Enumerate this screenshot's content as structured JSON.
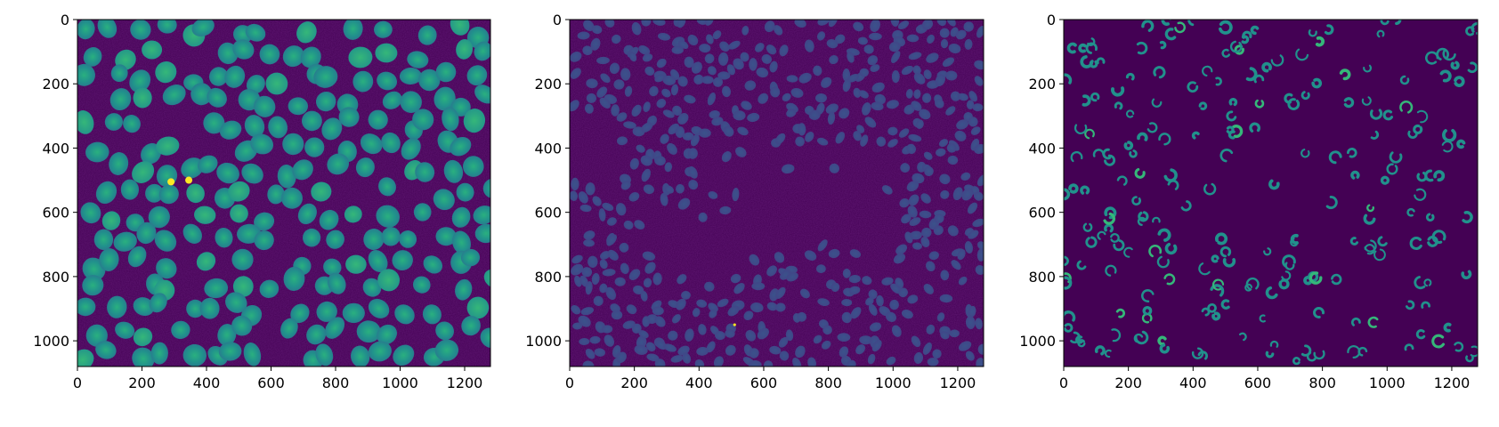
{
  "figure": {
    "background": "#ffffff",
    "image_background": "#440154",
    "colormap": "viridis",
    "panels": [
      {
        "id": "panel-1",
        "content": "dense fluorescent nuclei, large and bright teal/green with textured interiors",
        "x_ticks": [
          "0",
          "200",
          "400",
          "600",
          "800",
          "1000",
          "1200"
        ],
        "y_ticks": [
          "0",
          "200",
          "400",
          "600",
          "800",
          "1000"
        ],
        "x_range": [
          0,
          1280
        ],
        "y_range": [
          0,
          1080
        ]
      },
      {
        "id": "panel-2",
        "content": "many small dim blue-purple nuclei with an empty central region",
        "x_ticks": [
          "0",
          "200",
          "400",
          "600",
          "800",
          "1000",
          "1200"
        ],
        "y_ticks": [
          "0",
          "200",
          "400",
          "600",
          "800",
          "1000"
        ],
        "x_range": [
          0,
          1280
        ],
        "y_range": [
          0,
          1080
        ]
      },
      {
        "id": "panel-3",
        "content": "sparse segmented teal nuclei fragments on dark purple background",
        "x_ticks": [
          "0",
          "200",
          "400",
          "600",
          "800",
          "1000",
          "1200"
        ],
        "y_ticks": [
          "0",
          "200",
          "400",
          "600",
          "800",
          "1000"
        ],
        "x_range": [
          0,
          1280
        ],
        "y_range": [
          0,
          1080
        ]
      }
    ]
  }
}
